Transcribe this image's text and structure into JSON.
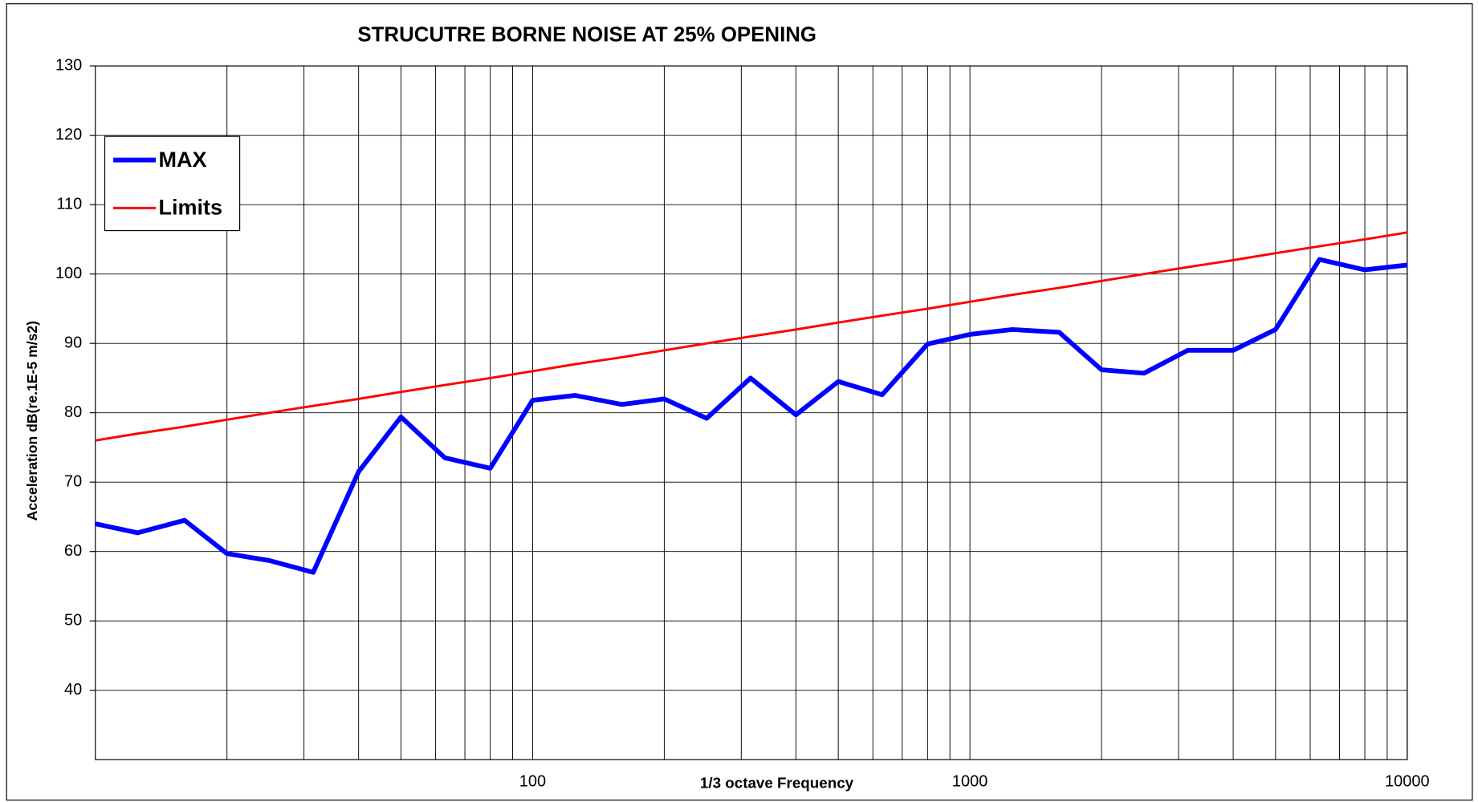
{
  "chart_data": {
    "type": "line",
    "title": "STRUCUTRE BORNE NOISE AT 25% OPENING",
    "xlabel": "1/3 octave Frequency",
    "ylabel": "Acceleration dB(re.1E-5 m/s2)",
    "x": [
      10,
      12.5,
      16,
      20,
      25,
      31.5,
      40,
      50,
      63,
      80,
      100,
      125,
      160,
      200,
      250,
      315,
      400,
      500,
      630,
      800,
      1000,
      1250,
      1600,
      2000,
      2500,
      3150,
      4000,
      5000,
      6300,
      8000,
      10000
    ],
    "series": [
      {
        "name": "MAX",
        "color": "#0000ff",
        "values": [
          64,
          62.7,
          64.5,
          59.7,
          58.7,
          57,
          71.5,
          79.4,
          73.5,
          72,
          81.8,
          82.5,
          81.2,
          82,
          79.2,
          85,
          79.7,
          84.5,
          82.6,
          89.9,
          91.3,
          92,
          91.6,
          86.2,
          85.7,
          89,
          89,
          92,
          102.1,
          100.6,
          101.3
        ]
      },
      {
        "name": "Limits",
        "color": "#ff0000",
        "values": [
          76,
          77,
          78,
          79,
          80,
          81,
          82,
          83,
          84,
          85,
          86,
          87,
          88,
          89,
          90,
          91,
          92,
          93,
          94,
          95,
          96,
          97,
          98,
          99,
          100,
          101,
          102,
          103,
          104,
          105,
          106
        ]
      }
    ],
    "xscale": "log",
    "xlim": [
      10,
      10000
    ],
    "xticks": [
      100,
      1000,
      10000
    ],
    "xminor_ticks": [
      20,
      30,
      40,
      50,
      60,
      70,
      80,
      90,
      200,
      300,
      400,
      500,
      600,
      700,
      800,
      900,
      2000,
      3000,
      4000,
      5000,
      6000,
      7000,
      8000,
      9000
    ],
    "ylim": [
      30,
      130
    ],
    "yticks": [
      40,
      50,
      60,
      70,
      80,
      90,
      100,
      110,
      120,
      130
    ],
    "grid": true,
    "legend": "upper left"
  }
}
